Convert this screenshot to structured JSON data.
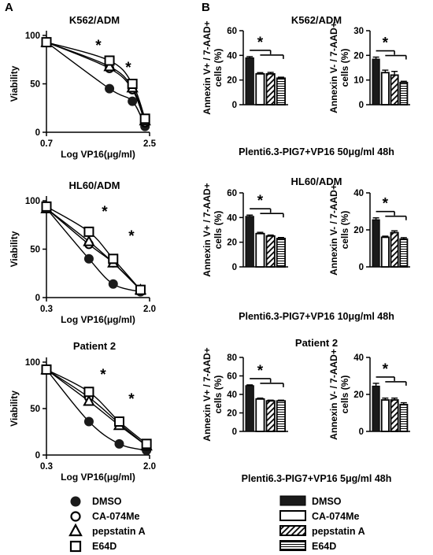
{
  "panel_labels": [
    "A",
    "B"
  ],
  "legend_a": [
    {
      "name": "DMSO",
      "marker": "circle-filled"
    },
    {
      "name": "CA-074Me",
      "marker": "circle-open"
    },
    {
      "name": "pepstatin A",
      "marker": "triangle-open"
    },
    {
      "name": "E64D",
      "marker": "square-open"
    }
  ],
  "legend_b": [
    {
      "name": "DMSO",
      "fill": "solid"
    },
    {
      "name": "CA-074Me",
      "fill": "empty"
    },
    {
      "name": "pepstatin A",
      "fill": "diagonal"
    },
    {
      "name": "E64D",
      "fill": "horizontal"
    }
  ],
  "colors": {
    "ink": "#000000",
    "dmso_fill": "#1a1a1a",
    "background": "#ffffff"
  },
  "chart_data": [
    {
      "id": "a1",
      "type": "line",
      "title": "K562/ADM",
      "xlabel": "Log VP16(μg/ml)",
      "ylabel": "Viability",
      "x_ticks": [
        "0.7",
        "2.5"
      ],
      "y_ticks": [
        "0",
        "50",
        "100"
      ],
      "xlim": [
        0.7,
        2.5
      ],
      "ylim": [
        0,
        100
      ],
      "series": [
        {
          "name": "DMSO",
          "points": [
            [
              0.7,
              93
            ],
            [
              1.8,
              45
            ],
            [
              2.2,
              32
            ],
            [
              2.42,
              6
            ]
          ]
        },
        {
          "name": "CA-074Me",
          "points": [
            [
              0.7,
              93
            ],
            [
              1.8,
              66
            ],
            [
              2.2,
              44
            ],
            [
              2.42,
              10
            ]
          ]
        },
        {
          "name": "pepstatin A",
          "points": [
            [
              0.7,
              93
            ],
            [
              1.8,
              68
            ],
            [
              2.2,
              46
            ],
            [
              2.42,
              12
            ]
          ]
        },
        {
          "name": "E64D",
          "points": [
            [
              0.7,
              93
            ],
            [
              1.8,
              74
            ],
            [
              2.2,
              50
            ],
            [
              2.42,
              14
            ]
          ]
        }
      ],
      "annotations": [
        "*",
        "*"
      ]
    },
    {
      "id": "a2",
      "type": "line",
      "title": "HL60/ADM",
      "xlabel": "Log VP16(μg/ml)",
      "ylabel": "Viability",
      "x_ticks": [
        "0.3",
        "2.0"
      ],
      "y_ticks": [
        "0",
        "50",
        "100"
      ],
      "xlim": [
        0.3,
        2.0
      ],
      "ylim": [
        0,
        100
      ],
      "series": [
        {
          "name": "DMSO",
          "points": [
            [
              0.3,
              92
            ],
            [
              1.0,
              40
            ],
            [
              1.4,
              14
            ],
            [
              1.85,
              6
            ]
          ]
        },
        {
          "name": "CA-074Me",
          "points": [
            [
              0.3,
              92
            ],
            [
              1.0,
              55
            ],
            [
              1.4,
              36
            ],
            [
              1.85,
              8
            ]
          ]
        },
        {
          "name": "pepstatin A",
          "points": [
            [
              0.3,
              92
            ],
            [
              1.0,
              58
            ],
            [
              1.4,
              36
            ],
            [
              1.85,
              8
            ]
          ]
        },
        {
          "name": "E64D",
          "points": [
            [
              0.3,
              94
            ],
            [
              1.0,
              68
            ],
            [
              1.4,
              40
            ],
            [
              1.85,
              8
            ]
          ]
        }
      ],
      "annotations": [
        "*",
        "*"
      ]
    },
    {
      "id": "a3",
      "type": "line",
      "title": "Patient 2",
      "xlabel": "Log VP16(μg/ml)",
      "ylabel": "Viability",
      "x_ticks": [
        "0.3",
        "2.0"
      ],
      "y_ticks": [
        "0",
        "50",
        "100"
      ],
      "xlim": [
        0.3,
        2.0
      ],
      "ylim": [
        0,
        100
      ],
      "series": [
        {
          "name": "DMSO",
          "points": [
            [
              0.3,
              92
            ],
            [
              1.0,
              36
            ],
            [
              1.5,
              12
            ],
            [
              1.95,
              5
            ]
          ]
        },
        {
          "name": "CA-074Me",
          "points": [
            [
              0.3,
              92
            ],
            [
              1.0,
              62
            ],
            [
              1.5,
              34
            ],
            [
              1.95,
              10
            ]
          ]
        },
        {
          "name": "pepstatin A",
          "points": [
            [
              0.3,
              92
            ],
            [
              1.0,
              58
            ],
            [
              1.5,
              32
            ],
            [
              1.95,
              10
            ]
          ]
        },
        {
          "name": "E64D",
          "points": [
            [
              0.3,
              92
            ],
            [
              1.0,
              68
            ],
            [
              1.5,
              36
            ],
            [
              1.95,
              12
            ]
          ]
        }
      ],
      "annotations": [
        "*",
        "*"
      ]
    },
    {
      "id": "b1",
      "type": "bar",
      "title": "K562/ADM",
      "ylabel": [
        "Annexin V+ / 7-AAD+",
        "cells (%)"
      ],
      "y_ticks": [
        "0",
        "20",
        "40",
        "60"
      ],
      "ylim": [
        0,
        60
      ],
      "categories": [
        "DMSO",
        "CA-074Me",
        "pepstatin A",
        "E64D"
      ],
      "values": [
        38,
        25,
        25,
        21.5
      ],
      "errors": [
        1,
        1,
        1.2,
        0.8
      ],
      "annotations": [
        "*"
      ]
    },
    {
      "id": "b2",
      "type": "bar",
      "title": "",
      "ylabel": [
        "Annexin V- / 7-AAD+",
        "cells (%)"
      ],
      "y_ticks": [
        "0",
        "10",
        "20",
        "30"
      ],
      "ylim": [
        0,
        30
      ],
      "categories": [
        "DMSO",
        "CA-074Me",
        "pepstatin A",
        "E64D"
      ],
      "values": [
        18.5,
        13,
        12,
        9
      ],
      "errors": [
        0.8,
        1,
        1.5,
        0.5
      ],
      "annotations": [
        "*"
      ]
    },
    {
      "id": "b3",
      "type": "bar",
      "title": "HL60/ADM",
      "ylabel": [
        "Annexin V+ / 7-AAD+",
        "cells (%)"
      ],
      "y_ticks": [
        "0",
        "20",
        "40",
        "60"
      ],
      "ylim": [
        0,
        60
      ],
      "categories": [
        "DMSO",
        "CA-074Me",
        "pepstatin A",
        "E64D"
      ],
      "values": [
        41,
        27,
        25,
        23
      ],
      "errors": [
        1,
        1,
        0.8,
        0.8
      ],
      "annotations": [
        "*"
      ]
    },
    {
      "id": "b4",
      "type": "bar",
      "title": "",
      "ylabel": [
        "Annexin V- / 7-AAD+",
        "cells (%)"
      ],
      "y_ticks": [
        "0",
        "20",
        "40"
      ],
      "ylim": [
        0,
        40
      ],
      "categories": [
        "DMSO",
        "CA-074Me",
        "pepstatin A",
        "E64D"
      ],
      "values": [
        25.5,
        16,
        18.5,
        15
      ],
      "errors": [
        1,
        0.6,
        1,
        0.8
      ],
      "annotations": [
        "*"
      ]
    },
    {
      "id": "b5",
      "type": "bar",
      "title": "Patient 2",
      "ylabel": [
        "Annexin V+ / 7-AAD+",
        "cells (%)"
      ],
      "y_ticks": [
        "0",
        "20",
        "40",
        "60",
        "80"
      ],
      "ylim": [
        0,
        80
      ],
      "categories": [
        "DMSO",
        "CA-074Me",
        "pepstatin A",
        "E64D"
      ],
      "values": [
        49.5,
        35,
        33,
        33
      ],
      "errors": [
        0.8,
        1,
        0.8,
        0.8
      ],
      "annotations": [
        "*"
      ]
    },
    {
      "id": "b6",
      "type": "bar",
      "title": "",
      "ylabel": [
        "Annexin V- / 7-AAD+",
        "cells (%)"
      ],
      "y_ticks": [
        "0",
        "20",
        "40"
      ],
      "ylim": [
        0,
        40
      ],
      "categories": [
        "DMSO",
        "CA-074Me",
        "pepstatin A",
        "E64D"
      ],
      "values": [
        24.5,
        17,
        17,
        14.5
      ],
      "errors": [
        1.5,
        1,
        1,
        1
      ],
      "annotations": [
        "*"
      ]
    }
  ],
  "conditions": [
    "Plenti6.3-PIG7+VP16 50μg/ml 48h",
    "Plenti6.3-PIG7+VP16 10μg/ml 48h",
    "Plenti6.3-PIG7+VP16 5μg/ml 48h"
  ]
}
